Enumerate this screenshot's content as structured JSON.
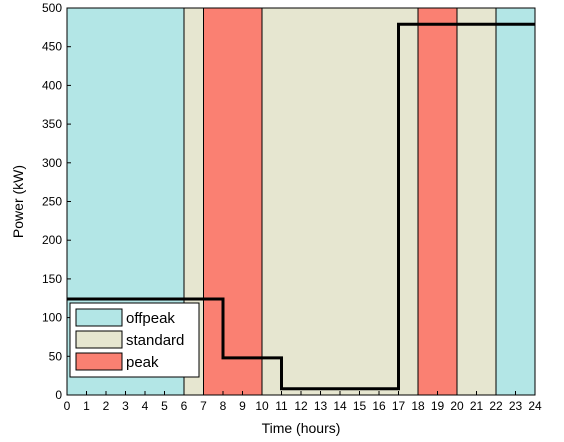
{
  "chart_data": {
    "type": "line",
    "title": "",
    "xlabel": "Time (hours)",
    "ylabel": "Power (kW)",
    "xlim": [
      0,
      24
    ],
    "ylim": [
      0,
      500
    ],
    "xticks": [
      "0",
      "1",
      "2",
      "3",
      "4",
      "5",
      "6",
      "7",
      "8",
      "9",
      "10",
      "11",
      "12",
      "13",
      "14",
      "15",
      "16",
      "17",
      "18",
      "19",
      "20",
      "21",
      "22",
      "23",
      "24"
    ],
    "yticks": [
      "0",
      "50",
      "100",
      "150",
      "200",
      "250",
      "300",
      "350",
      "400",
      "450",
      "500"
    ],
    "grid": false,
    "legend": {
      "position": "bottom-left",
      "entries": [
        {
          "label": "offpeak",
          "color": "#b3e6e6"
        },
        {
          "label": "standard",
          "color": "#e6e6d0"
        },
        {
          "label": "peak",
          "color": "#fa8072"
        }
      ]
    },
    "bands": [
      {
        "tariff": "offpeak",
        "start": 0,
        "end": 6
      },
      {
        "tariff": "standard",
        "start": 6,
        "end": 7
      },
      {
        "tariff": "peak",
        "start": 7,
        "end": 10
      },
      {
        "tariff": "standard",
        "start": 10,
        "end": 18
      },
      {
        "tariff": "peak",
        "start": 18,
        "end": 20
      },
      {
        "tariff": "standard",
        "start": 20,
        "end": 22
      },
      {
        "tariff": "offpeak",
        "start": 22,
        "end": 24
      }
    ],
    "series": [
      {
        "line_type": "step",
        "color": "#000000",
        "points": [
          {
            "x": 0,
            "y": 124
          },
          {
            "x": 8,
            "y": 124
          },
          {
            "x": 8,
            "y": 48
          },
          {
            "x": 11,
            "y": 48
          },
          {
            "x": 11,
            "y": 8
          },
          {
            "x": 17,
            "y": 8
          },
          {
            "x": 17,
            "y": 479
          },
          {
            "x": 24,
            "y": 479
          }
        ]
      }
    ]
  }
}
